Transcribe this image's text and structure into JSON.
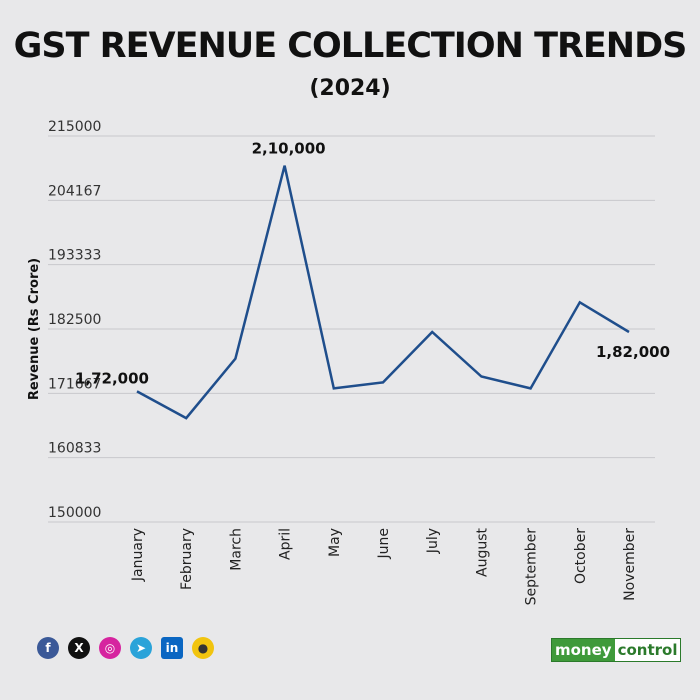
{
  "chart_data": {
    "type": "line",
    "title": "GST REVENUE COLLECTION TRENDS",
    "subtitle": "(2024)",
    "ylabel": "Revenue (Rs Crore)",
    "xlabel": "",
    "categories": [
      "January",
      "February",
      "March",
      "April",
      "May",
      "June",
      "July",
      "August",
      "September",
      "October",
      "November"
    ],
    "values": [
      172000,
      167500,
      177500,
      210000,
      172500,
      173500,
      182000,
      174500,
      172500,
      187000,
      182000
    ],
    "ylim": [
      150000,
      215000
    ],
    "yticks": [
      "150000",
      "160833",
      "171667",
      "182500",
      "193333",
      "204167",
      "215000"
    ],
    "ytick_values": [
      150000,
      160833,
      171667,
      182500,
      193333,
      204167,
      215000
    ],
    "data_labels": [
      {
        "index": 0,
        "text": "1,72,000"
      },
      {
        "index": 3,
        "text": "2,10,000"
      },
      {
        "index": 10,
        "text": "1,82,000"
      }
    ],
    "line_color": "#1f4e8c",
    "grid": true,
    "legend": "none"
  },
  "footer": {
    "social": [
      {
        "icon": "facebook-icon",
        "glyph": "f"
      },
      {
        "icon": "x-icon",
        "glyph": "X"
      },
      {
        "icon": "instagram-icon",
        "glyph": "◎"
      },
      {
        "icon": "telegram-icon",
        "glyph": "➤"
      },
      {
        "icon": "linkedin-icon",
        "glyph": "in"
      },
      {
        "icon": "koo-icon",
        "glyph": "●"
      }
    ],
    "brand_part1": "money",
    "brand_part2": "control"
  }
}
